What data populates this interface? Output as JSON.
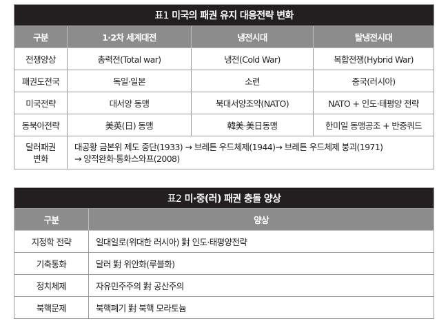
{
  "table1": {
    "label": "표1",
    "title": "미국의 패권 유지 대응전략 변화",
    "headers": [
      "구분",
      "1·2차 세계대전",
      "냉전시대",
      "탈냉전시대"
    ],
    "rows": [
      [
        "전쟁양상",
        "총력전(Total war)",
        "냉전(Cold War)",
        "복합전쟁(Hybrid War)"
      ],
      [
        "패권도전국",
        "독일·일본",
        "소련",
        "중국(러시아)"
      ],
      [
        "미국전략",
        "대서양 동맹",
        "북대서양조약(NATO)",
        "NATO + 인도·태평양 전략"
      ],
      [
        "동북아전략",
        "美英(日) 동맹",
        "韓美·美日동맹",
        "한미일 동맹공조 + 반중쿼드"
      ]
    ],
    "dollar_row": {
      "label_line1": "달러패권",
      "label_line2": "변화",
      "text_line1": "대공황 금본위 제도 중단(1933) → 브레튼 우드체제(1944)→ 브레튼 우드체제 붕괴(1971)",
      "text_line2": "→ 양적완화·통화스와프(2008)"
    }
  },
  "table2": {
    "label": "표2",
    "title": "미·중(러) 패권 충돌 양상",
    "headers": [
      "구분",
      "양상"
    ],
    "rows": [
      [
        "지정학 전략",
        "일대일로(위대한 러시아) 對 인도·태평양전략"
      ],
      [
        "기축통화",
        "달러 對 위안화(루블화)"
      ],
      [
        "정치체제",
        "자유민주주의 對 공산주의"
      ],
      [
        "북핵문제",
        "북핵폐기 對 북핵 모라토늄"
      ]
    ]
  },
  "colors": {
    "title_bg": "#231f20",
    "header_bg": "#8c8c8c"
  }
}
